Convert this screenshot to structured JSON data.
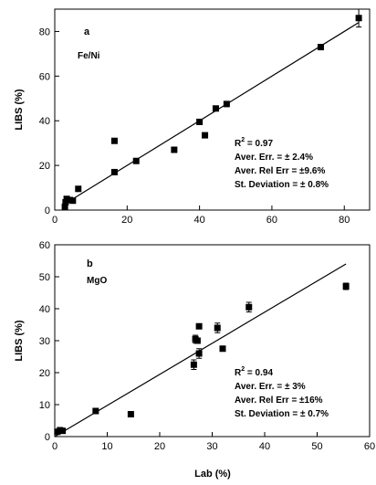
{
  "chart_data": [
    {
      "type": "scatter",
      "panel_label": "a",
      "name_label": "Fe/Ni",
      "xlabel": "",
      "ylabel": "LIBS (%)",
      "xlim": [
        0,
        87
      ],
      "ylim": [
        0,
        90
      ],
      "xticks": [
        0,
        20,
        40,
        60,
        80
      ],
      "yticks": [
        0,
        20,
        40,
        60,
        80
      ],
      "grid": false,
      "points": [
        {
          "x": 2.8,
          "y": 1.5
        },
        {
          "x": 3.0,
          "y": 3.5
        },
        {
          "x": 3.3,
          "y": 5.0
        },
        {
          "x": 4.2,
          "y": 4.5
        },
        {
          "x": 5.0,
          "y": 4.2
        },
        {
          "x": 6.5,
          "y": 9.5
        },
        {
          "x": 16.5,
          "y": 31.0
        },
        {
          "x": 16.5,
          "y": 17.0
        },
        {
          "x": 22.5,
          "y": 22.0
        },
        {
          "x": 33.0,
          "y": 27.0
        },
        {
          "x": 40.0,
          "y": 39.5
        },
        {
          "x": 41.5,
          "y": 33.5
        },
        {
          "x": 44.5,
          "y": 45.5
        },
        {
          "x": 47.5,
          "y": 47.5
        },
        {
          "x": 73.5,
          "y": 73.0
        },
        {
          "x": 84.0,
          "y": 86.0,
          "yerr": 4.0
        }
      ],
      "fit_line": [
        {
          "x": 2.5,
          "y": 2.5
        },
        {
          "x": 84.0,
          "y": 84.0
        }
      ],
      "stats": {
        "r2_prefix": "R",
        "r2_sup": "2",
        "r2_value": " = 0.97",
        "aver_err": "Aver. Err. = ± 2.4%",
        "aver_rel_err": "Aver. Rel Err = ±9.6%",
        "st_dev": "St. Deviation = ± 0.8%"
      }
    },
    {
      "type": "scatter",
      "panel_label": "b",
      "name_label": "MgO",
      "xlabel": "Lab (%)",
      "ylabel": "LIBS (%)",
      "xlim": [
        0,
        60
      ],
      "ylim": [
        0,
        60
      ],
      "xticks": [
        0,
        10,
        20,
        30,
        40,
        50,
        60
      ],
      "yticks": [
        0,
        10,
        20,
        30,
        40,
        50,
        60
      ],
      "grid": false,
      "points": [
        {
          "x": 0.5,
          "y": 1.5
        },
        {
          "x": 1.0,
          "y": 2.0
        },
        {
          "x": 1.5,
          "y": 1.8
        },
        {
          "x": 7.8,
          "y": 8.0
        },
        {
          "x": 14.5,
          "y": 7.0
        },
        {
          "x": 26.5,
          "y": 22.5,
          "yerr": 1.5
        },
        {
          "x": 26.8,
          "y": 30.5,
          "yerr": 1.2
        },
        {
          "x": 27.2,
          "y": 30.0
        },
        {
          "x": 27.5,
          "y": 34.5
        },
        {
          "x": 27.5,
          "y": 26.0,
          "yerr": 1.5
        },
        {
          "x": 31.0,
          "y": 34.0,
          "yerr": 1.5
        },
        {
          "x": 32.0,
          "y": 27.5
        },
        {
          "x": 37.0,
          "y": 40.5,
          "yerr": 1.5
        },
        {
          "x": 55.5,
          "y": 47.0,
          "yerr": 1.0
        }
      ],
      "fit_line": [
        {
          "x": 0.0,
          "y": 0.0
        },
        {
          "x": 55.5,
          "y": 54.0
        }
      ],
      "stats": {
        "r2_prefix": "R",
        "r2_sup": "2",
        "r2_value": " = 0.94",
        "aver_err": "Aver. Err. = ± 3%",
        "aver_rel_err": "Aver. Rel Err = ±16%",
        "st_dev": "St. Deviation = ± 0.7%"
      }
    }
  ]
}
